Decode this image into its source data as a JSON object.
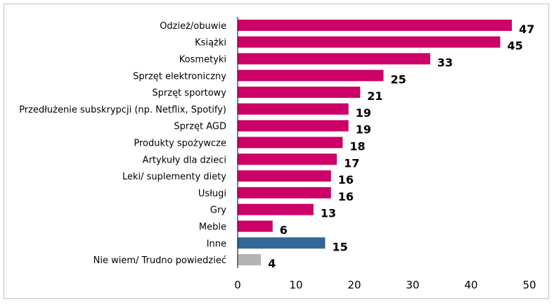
{
  "chart_data": {
    "type": "bar",
    "orientation": "horizontal",
    "title": "",
    "xlabel": "",
    "ylabel": "",
    "xlim": [
      0,
      50
    ],
    "x_ticks": [
      "0",
      "10",
      "20",
      "30",
      "40",
      "50"
    ],
    "grid": false,
    "legend": "none",
    "categories": [
      "Odzież/obuwie",
      "Książki",
      "Kosmetyki",
      "Sprzęt elektroniczny",
      "Sprzęt sportowy",
      "Przedłużenie subskrypcji (np. Netflix, Spotify)",
      "Sprzęt AGD",
      "Produkty spożywcze",
      "Artykuły dla dzieci",
      "Leki/ suplementy diety",
      "Usługi",
      "Gry",
      "Meble",
      "Inne",
      "Nie wiem/ Trudno powiedzieć"
    ],
    "values": [
      47,
      45,
      33,
      25,
      21,
      19,
      19,
      18,
      17,
      16,
      16,
      13,
      6,
      15,
      4
    ],
    "value_labels": [
      "47",
      "45",
      "33",
      "25",
      "21",
      "19",
      "19",
      "18",
      "17",
      "16",
      "16",
      "13",
      "6",
      "15",
      "4"
    ],
    "colors": [
      "#cc0066",
      "#cc0066",
      "#cc0066",
      "#cc0066",
      "#cc0066",
      "#cc0066",
      "#cc0066",
      "#cc0066",
      "#cc0066",
      "#cc0066",
      "#cc0066",
      "#cc0066",
      "#cc0066",
      "#336699",
      "#b3b3b3"
    ]
  }
}
